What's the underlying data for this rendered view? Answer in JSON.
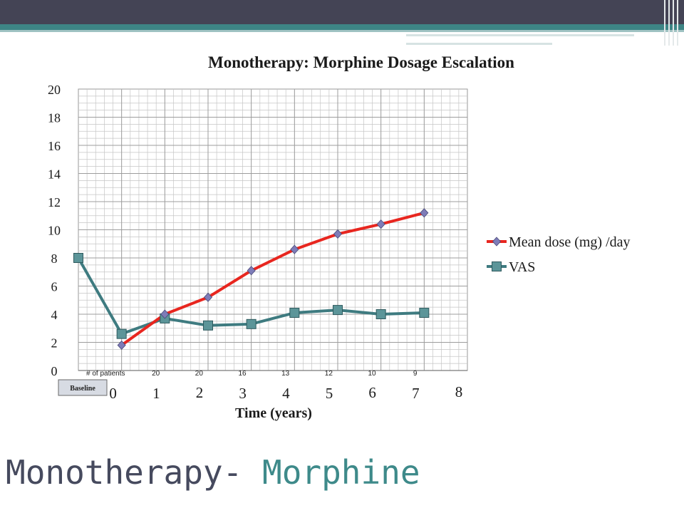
{
  "slide": {
    "title_main": "Monotherapy- ",
    "title_accent": "Morphine"
  },
  "theme": {
    "header_dark": "#444455",
    "header_teal": "#3d8585",
    "title_dark": "#464a5e",
    "title_accent": "#3e8a8a"
  },
  "chart_data": {
    "type": "line",
    "title": "Monotherapy: Morphine Dosage Escalation",
    "xlabel": "Time (years)",
    "ylabel": "",
    "ylim": [
      0,
      20
    ],
    "xlim": [
      -1,
      8
    ],
    "y_ticks": [
      "0",
      "2",
      "4",
      "6",
      "8",
      "10",
      "12",
      "14",
      "16",
      "18",
      "20"
    ],
    "x_ticks": [
      "0",
      "1",
      "2",
      "3",
      "4",
      "5",
      "6",
      "7",
      "8"
    ],
    "baseline_label": "Baseline",
    "grid": true,
    "legend_position": "right",
    "patients_label": "# of patients",
    "patients_counts": [
      "20",
      "20",
      "16",
      "13",
      "12",
      "10",
      "9"
    ],
    "series": [
      {
        "name": "Mean dose (mg) /day",
        "color": "#e8261f",
        "marker": "diamond",
        "marker_color": "#7e7cb8",
        "x": [
          0,
          1,
          2,
          3,
          4,
          5,
          6,
          7
        ],
        "y": [
          1.8,
          4.0,
          5.2,
          7.1,
          8.6,
          9.7,
          10.4,
          11.2
        ]
      },
      {
        "name": "VAS",
        "color": "#3e7b80",
        "marker": "square",
        "marker_color": "#5c9599",
        "x": [
          -1,
          0,
          1,
          2,
          3,
          4,
          5,
          6,
          7
        ],
        "y": [
          8.0,
          2.6,
          3.7,
          3.2,
          3.3,
          4.1,
          4.3,
          4.0,
          4.1
        ]
      }
    ]
  }
}
